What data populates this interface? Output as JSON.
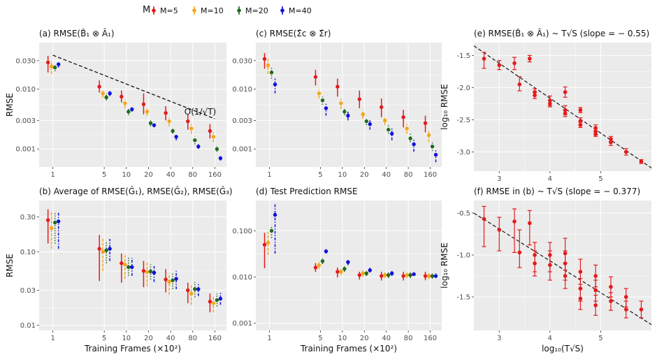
{
  "colors": {
    "M=5": "#e41a1c",
    "M=10": "#f4a616",
    "M=20": "#1f6b1f",
    "M=40": "#1010dd",
    "panel_bg": "#ebebeb",
    "grid": "#ffffff",
    "scatter": "#e41a1c"
  },
  "legend": {
    "title": "M",
    "items": [
      "M=5",
      "M=10",
      "M=20",
      "M=40"
    ]
  },
  "x_axis_label": "Training Frames (×10²)",
  "chart_data": [
    {
      "panel": "a",
      "type": "scatter",
      "title": "(a) RMSE(B̂₁ ⊗ Â₁)",
      "xlabel": "",
      "ylabel": "RMSE",
      "xscale": "log",
      "yscale": "log",
      "xticks": [
        1,
        5,
        10,
        20,
        40,
        80,
        160
      ],
      "yticks": [
        0.001,
        0.003,
        0.01,
        0.03
      ],
      "ytick_labels": [
        "0.001",
        "0.003",
        "0.010",
        "0.030"
      ],
      "ylim": [
        0.0005,
        0.06
      ],
      "annotation": "O(1/√T)",
      "reference_line": {
        "x": [
          1,
          160
        ],
        "y": [
          0.037,
          0.0032
        ]
      },
      "grid": true,
      "series": [
        {
          "name": "M=5",
          "x": [
            1,
            5,
            10,
            20,
            40,
            80,
            160
          ],
          "y": [
            0.028,
            0.011,
            0.0075,
            0.0056,
            0.004,
            0.0029,
            0.002
          ],
          "lo": [
            0.019,
            0.0088,
            0.006,
            0.0038,
            0.003,
            0.0021,
            0.0015
          ],
          "hi": [
            0.036,
            0.014,
            0.0095,
            0.0085,
            0.0052,
            0.0038,
            0.0026
          ]
        },
        {
          "name": "M=10",
          "x": [
            1,
            5,
            10,
            20,
            40,
            80,
            160
          ],
          "y": [
            0.024,
            0.0085,
            0.0058,
            0.0042,
            0.0029,
            0.0022,
            0.0016
          ],
          "lo": [
            0.018,
            0.0072,
            0.0048,
            0.0036,
            0.0024,
            0.0018,
            0.0013
          ],
          "hi": [
            0.03,
            0.0098,
            0.0068,
            0.0049,
            0.0034,
            0.0026,
            0.0019
          ]
        },
        {
          "name": "M=20",
          "x": [
            1,
            5,
            10,
            20,
            40,
            80,
            160
          ],
          "y": [
            0.023,
            0.0073,
            0.0042,
            0.0027,
            0.002,
            0.0014,
            0.001
          ],
          "lo": [
            0.02,
            0.0065,
            0.0037,
            0.0024,
            0.0018,
            0.0012,
            0.0009
          ],
          "hi": [
            0.026,
            0.0081,
            0.0047,
            0.003,
            0.0022,
            0.0016,
            0.0011
          ]
        },
        {
          "name": "M=40",
          "x": [
            1,
            5,
            10,
            20,
            40,
            80,
            160
          ],
          "y": [
            0.026,
            0.0085,
            0.0046,
            0.0025,
            0.0016,
            0.0011,
            0.0007
          ],
          "lo": [
            0.023,
            0.0077,
            0.0042,
            0.0023,
            0.0014,
            0.001,
            0.00064
          ],
          "hi": [
            0.029,
            0.0093,
            0.005,
            0.0027,
            0.0018,
            0.0012,
            0.00076
          ]
        }
      ]
    },
    {
      "panel": "b",
      "type": "scatter",
      "title": "(b) Average of RMSE(Ĝ₁), RMSE(Ĝ₂), RMSE(Ĝ₃)",
      "xlabel": "Training Frames (×10²)",
      "ylabel": "RMSE",
      "xscale": "log",
      "yscale": "log",
      "xticks": [
        1,
        5,
        10,
        20,
        40,
        80,
        160
      ],
      "yticks": [
        0.01,
        0.03,
        0.1,
        0.3
      ],
      "ytick_labels": [
        "0.01",
        "0.03",
        "0.10",
        "0.30"
      ],
      "ylim": [
        0.0085,
        0.5
      ],
      "grid": true,
      "series": [
        {
          "name": "M=5",
          "x": [
            1,
            5,
            10,
            20,
            40,
            80,
            160
          ],
          "y": [
            0.27,
            0.11,
            0.07,
            0.055,
            0.042,
            0.03,
            0.021
          ],
          "lo": [
            0.13,
            0.04,
            0.038,
            0.033,
            0.028,
            0.02,
            0.015
          ],
          "hi": [
            0.38,
            0.17,
            0.095,
            0.075,
            0.058,
            0.038,
            0.027
          ]
        },
        {
          "name": "M=10",
          "x": [
            1,
            5,
            10,
            20,
            40,
            80,
            160
          ],
          "y": [
            0.21,
            0.1,
            0.067,
            0.053,
            0.039,
            0.027,
            0.02
          ],
          "lo": [
            0.11,
            0.055,
            0.043,
            0.034,
            0.026,
            0.019,
            0.015
          ],
          "hi": [
            0.36,
            0.15,
            0.09,
            0.071,
            0.051,
            0.035,
            0.025
          ]
        },
        {
          "name": "M=20",
          "x": [
            1,
            5,
            10,
            20,
            40,
            80,
            160
          ],
          "y": [
            0.25,
            0.105,
            0.062,
            0.054,
            0.041,
            0.031,
            0.022
          ],
          "lo": [
            0.13,
            0.07,
            0.047,
            0.042,
            0.031,
            0.024,
            0.018
          ],
          "hi": [
            0.34,
            0.14,
            0.085,
            0.068,
            0.053,
            0.039,
            0.027
          ]
        },
        {
          "name": "M=40",
          "x": [
            1,
            5,
            10,
            20,
            40,
            80,
            160
          ],
          "y": [
            0.26,
            0.11,
            0.062,
            0.052,
            0.043,
            0.031,
            0.023
          ],
          "lo": [
            0.11,
            0.075,
            0.047,
            0.039,
            0.031,
            0.025,
            0.019
          ],
          "hi": [
            0.35,
            0.15,
            0.083,
            0.064,
            0.055,
            0.038,
            0.028
          ]
        }
      ]
    },
    {
      "panel": "c",
      "type": "scatter",
      "title": "(c) RMSE(Σ̂c ⊗ Σ̂r)",
      "xlabel": "",
      "ylabel": "",
      "xscale": "log",
      "yscale": "log",
      "xticks": [
        1,
        5,
        10,
        20,
        40,
        80,
        160
      ],
      "yticks": [
        0.001,
        0.003,
        0.01,
        0.03
      ],
      "ytick_labels": [
        "0.001",
        "0.003",
        "0.010",
        "0.030"
      ],
      "ylim": [
        0.0005,
        0.06
      ],
      "grid": true,
      "series": [
        {
          "name": "M=5",
          "x": [
            1,
            5,
            10,
            20,
            40,
            80,
            160
          ],
          "y": [
            0.032,
            0.016,
            0.011,
            0.0068,
            0.005,
            0.0034,
            0.0027
          ],
          "lo": [
            0.022,
            0.0115,
            0.0075,
            0.0048,
            0.0034,
            0.0023,
            0.0019
          ],
          "hi": [
            0.04,
            0.021,
            0.015,
            0.0095,
            0.007,
            0.0045,
            0.0036
          ]
        },
        {
          "name": "M=10",
          "x": [
            1,
            5,
            10,
            20,
            40,
            80,
            160
          ],
          "y": [
            0.025,
            0.0085,
            0.0058,
            0.0038,
            0.003,
            0.0022,
            0.0017
          ],
          "lo": [
            0.018,
            0.007,
            0.0047,
            0.0032,
            0.0025,
            0.0018,
            0.0013
          ],
          "hi": [
            0.032,
            0.01,
            0.0069,
            0.0045,
            0.0035,
            0.0026,
            0.0021
          ]
        },
        {
          "name": "M=20",
          "x": [
            1,
            5,
            10,
            20,
            40,
            80,
            160
          ],
          "y": [
            0.019,
            0.0065,
            0.0042,
            0.0029,
            0.0021,
            0.0015,
            0.0011
          ],
          "lo": [
            0.015,
            0.0055,
            0.0037,
            0.0025,
            0.0018,
            0.0013,
            0.00093
          ],
          "hi": [
            0.024,
            0.0075,
            0.0048,
            0.0033,
            0.0025,
            0.0018,
            0.0013
          ]
        },
        {
          "name": "M=40",
          "x": [
            1,
            5,
            10,
            20,
            40,
            80,
            160
          ],
          "y": [
            0.012,
            0.0048,
            0.0036,
            0.0026,
            0.0018,
            0.0012,
            0.0008
          ],
          "lo": [
            0.0085,
            0.0036,
            0.003,
            0.0021,
            0.0014,
            0.0009,
            0.0006
          ],
          "hi": [
            0.015,
            0.006,
            0.0042,
            0.0031,
            0.0022,
            0.0015,
            0.001
          ]
        }
      ]
    },
    {
      "panel": "d",
      "type": "scatter",
      "title": "(d) Test Prediction RMSE",
      "xlabel": "Training Frames (×10²)",
      "ylabel": "",
      "xscale": "log",
      "yscale": "log",
      "xticks": [
        1,
        5,
        10,
        20,
        40,
        80,
        160
      ],
      "yticks": [
        0.001,
        0.01,
        0.1
      ],
      "ytick_labels": [
        "0.001",
        "0.010",
        "0.100"
      ],
      "ylim": [
        0.0007,
        0.45
      ],
      "grid": true,
      "series": [
        {
          "name": "M=5",
          "x": [
            1,
            5,
            10,
            20,
            40,
            80,
            160
          ],
          "y": [
            0.05,
            0.016,
            0.013,
            0.011,
            0.0105,
            0.0105,
            0.0105
          ],
          "lo": [
            0.0155,
            0.013,
            0.0098,
            0.0088,
            0.0084,
            0.0084,
            0.0085
          ],
          "hi": [
            0.09,
            0.02,
            0.016,
            0.013,
            0.013,
            0.013,
            0.013
          ]
        },
        {
          "name": "M=10",
          "x": [
            1,
            5,
            10,
            20,
            40,
            80,
            160
          ],
          "y": [
            0.055,
            0.018,
            0.013,
            0.012,
            0.011,
            0.011,
            0.0105
          ],
          "lo": [
            0.03,
            0.015,
            0.011,
            0.01,
            0.0095,
            0.0095,
            0.009
          ],
          "hi": [
            0.095,
            0.021,
            0.015,
            0.014,
            0.0125,
            0.0125,
            0.012
          ]
        },
        {
          "name": "M=20",
          "x": [
            1,
            5,
            10,
            20,
            40,
            80,
            160
          ],
          "y": [
            0.1,
            0.022,
            0.015,
            0.012,
            0.011,
            0.011,
            0.0105
          ],
          "lo": [
            0.07,
            0.019,
            0.013,
            0.0105,
            0.0095,
            0.0095,
            0.0092
          ],
          "hi": [
            0.13,
            0.025,
            0.017,
            0.0135,
            0.0125,
            0.0125,
            0.012
          ]
        },
        {
          "name": "M=40",
          "x": [
            1,
            5,
            10,
            20,
            40,
            80,
            160
          ],
          "y": [
            0.22,
            0.036,
            0.021,
            0.014,
            0.012,
            0.0115,
            0.0105
          ],
          "lo": [
            0.032,
            0.032,
            0.018,
            0.0125,
            0.0105,
            0.0105,
            0.0095
          ],
          "hi": [
            0.4,
            0.04,
            0.024,
            0.016,
            0.0135,
            0.013,
            0.012
          ]
        }
      ]
    },
    {
      "panel": "e",
      "type": "scatter",
      "title": "(e) RMSE(B̂₁ ⊗ Â₁) ~ T√S (slope = − 0.55)",
      "xlabel": "",
      "ylabel": "log₁₀ RMSE",
      "xlim": [
        2.5,
        6.0
      ],
      "ylim": [
        -3.3,
        -1.3
      ],
      "xticks": [
        3,
        4,
        5
      ],
      "yticks": [
        -1.5,
        -2.0,
        -2.5,
        -3.0
      ],
      "ytick_labels": [
        "-1.5",
        "-2.0",
        "-2.5",
        "-3.0"
      ],
      "fit_line": {
        "x": [
          2.5,
          6.0
        ],
        "y": [
          -1.35,
          -3.25
        ]
      },
      "grid": true,
      "points": [
        {
          "x": 2.7,
          "y": -1.55,
          "lo": -1.7,
          "hi": -1.45
        },
        {
          "x": 3.0,
          "y": -1.65,
          "lo": -1.72,
          "hi": -1.58
        },
        {
          "x": 3.3,
          "y": -1.62,
          "lo": -1.72,
          "hi": -1.53
        },
        {
          "x": 3.4,
          "y": -1.95,
          "lo": -2.05,
          "hi": -1.83
        },
        {
          "x": 3.6,
          "y": -1.55,
          "lo": -1.6,
          "hi": -1.5
        },
        {
          "x": 3.7,
          "y": -2.07,
          "lo": -2.12,
          "hi": -2.02
        },
        {
          "x": 3.7,
          "y": -2.12,
          "lo": -2.17,
          "hi": -2.07
        },
        {
          "x": 4.0,
          "y": -2.2,
          "lo": -2.28,
          "hi": -2.13
        },
        {
          "x": 4.0,
          "y": -2.25,
          "lo": -2.3,
          "hi": -2.2
        },
        {
          "x": 4.3,
          "y": -2.07,
          "lo": -2.15,
          "hi": -1.99
        },
        {
          "x": 4.3,
          "y": -2.35,
          "lo": -2.42,
          "hi": -2.28
        },
        {
          "x": 4.3,
          "y": -2.4,
          "lo": -2.45,
          "hi": -2.35
        },
        {
          "x": 4.6,
          "y": -2.35,
          "lo": -2.39,
          "hi": -2.31
        },
        {
          "x": 4.6,
          "y": -2.52,
          "lo": -2.58,
          "hi": -2.47
        },
        {
          "x": 4.6,
          "y": -2.58,
          "lo": -2.62,
          "hi": -2.54
        },
        {
          "x": 4.9,
          "y": -2.63,
          "lo": -2.68,
          "hi": -2.58
        },
        {
          "x": 4.9,
          "y": -2.68,
          "lo": -2.74,
          "hi": -2.63
        },
        {
          "x": 4.9,
          "y": -2.72,
          "lo": -2.76,
          "hi": -2.68
        },
        {
          "x": 5.2,
          "y": -2.8,
          "lo": -2.84,
          "hi": -2.76
        },
        {
          "x": 5.2,
          "y": -2.85,
          "lo": -2.9,
          "hi": -2.8
        },
        {
          "x": 5.5,
          "y": -3.0,
          "lo": -3.05,
          "hi": -2.95
        },
        {
          "x": 5.8,
          "y": -3.15,
          "lo": -3.18,
          "hi": -3.12
        }
      ]
    },
    {
      "panel": "f",
      "type": "scatter",
      "title": "(f) RMSE in (b) ~ T√S (slope = − 0.377)",
      "xlabel": "log₁₀(T√S)",
      "ylabel": "log₁₀ RMSE",
      "xlim": [
        2.5,
        6.0
      ],
      "ylim": [
        -1.9,
        -0.35
      ],
      "xticks": [
        3,
        4,
        5
      ],
      "yticks": [
        -0.5,
        -1.0,
        -1.5
      ],
      "ytick_labels": [
        "-0.5",
        "-1.0",
        "-1.5"
      ],
      "fit_line": {
        "x": [
          2.5,
          6.0
        ],
        "y": [
          -0.5,
          -1.83
        ]
      },
      "grid": true,
      "points": [
        {
          "x": 2.7,
          "y": -0.57,
          "lo": -0.9,
          "hi": -0.42
        },
        {
          "x": 3.0,
          "y": -0.7,
          "lo": -0.95,
          "hi": -0.55
        },
        {
          "x": 3.3,
          "y": -0.6,
          "lo": -0.97,
          "hi": -0.45
        },
        {
          "x": 3.4,
          "y": -0.97,
          "lo": -1.15,
          "hi": -0.7
        },
        {
          "x": 3.6,
          "y": -0.62,
          "lo": -0.88,
          "hi": -0.47
        },
        {
          "x": 3.7,
          "y": -1.0,
          "lo": -1.2,
          "hi": -0.85
        },
        {
          "x": 3.7,
          "y": -1.1,
          "lo": -1.25,
          "hi": -0.95
        },
        {
          "x": 4.0,
          "y": -1.0,
          "lo": -1.2,
          "hi": -0.85
        },
        {
          "x": 4.0,
          "y": -1.12,
          "lo": -1.3,
          "hi": -0.95
        },
        {
          "x": 4.3,
          "y": -0.98,
          "lo": -1.18,
          "hi": -0.8
        },
        {
          "x": 4.3,
          "y": -1.1,
          "lo": -1.3,
          "hi": -0.95
        },
        {
          "x": 4.3,
          "y": -1.25,
          "lo": -1.4,
          "hi": -1.1
        },
        {
          "x": 4.6,
          "y": -1.2,
          "lo": -1.35,
          "hi": -1.05
        },
        {
          "x": 4.6,
          "y": -1.4,
          "lo": -1.55,
          "hi": -1.28
        },
        {
          "x": 4.6,
          "y": -1.52,
          "lo": -1.65,
          "hi": -1.4
        },
        {
          "x": 4.9,
          "y": -1.25,
          "lo": -1.38,
          "hi": -1.12
        },
        {
          "x": 4.9,
          "y": -1.42,
          "lo": -1.55,
          "hi": -1.3
        },
        {
          "x": 4.9,
          "y": -1.6,
          "lo": -1.72,
          "hi": -1.48
        },
        {
          "x": 5.2,
          "y": -1.38,
          "lo": -1.5,
          "hi": -1.26
        },
        {
          "x": 5.2,
          "y": -1.55,
          "lo": -1.66,
          "hi": -1.45
        },
        {
          "x": 5.5,
          "y": -1.5,
          "lo": -1.62,
          "hi": -1.4
        },
        {
          "x": 5.5,
          "y": -1.65,
          "lo": -1.75,
          "hi": -1.55
        },
        {
          "x": 5.8,
          "y": -1.65,
          "lo": -1.75,
          "hi": -1.55
        }
      ]
    }
  ]
}
